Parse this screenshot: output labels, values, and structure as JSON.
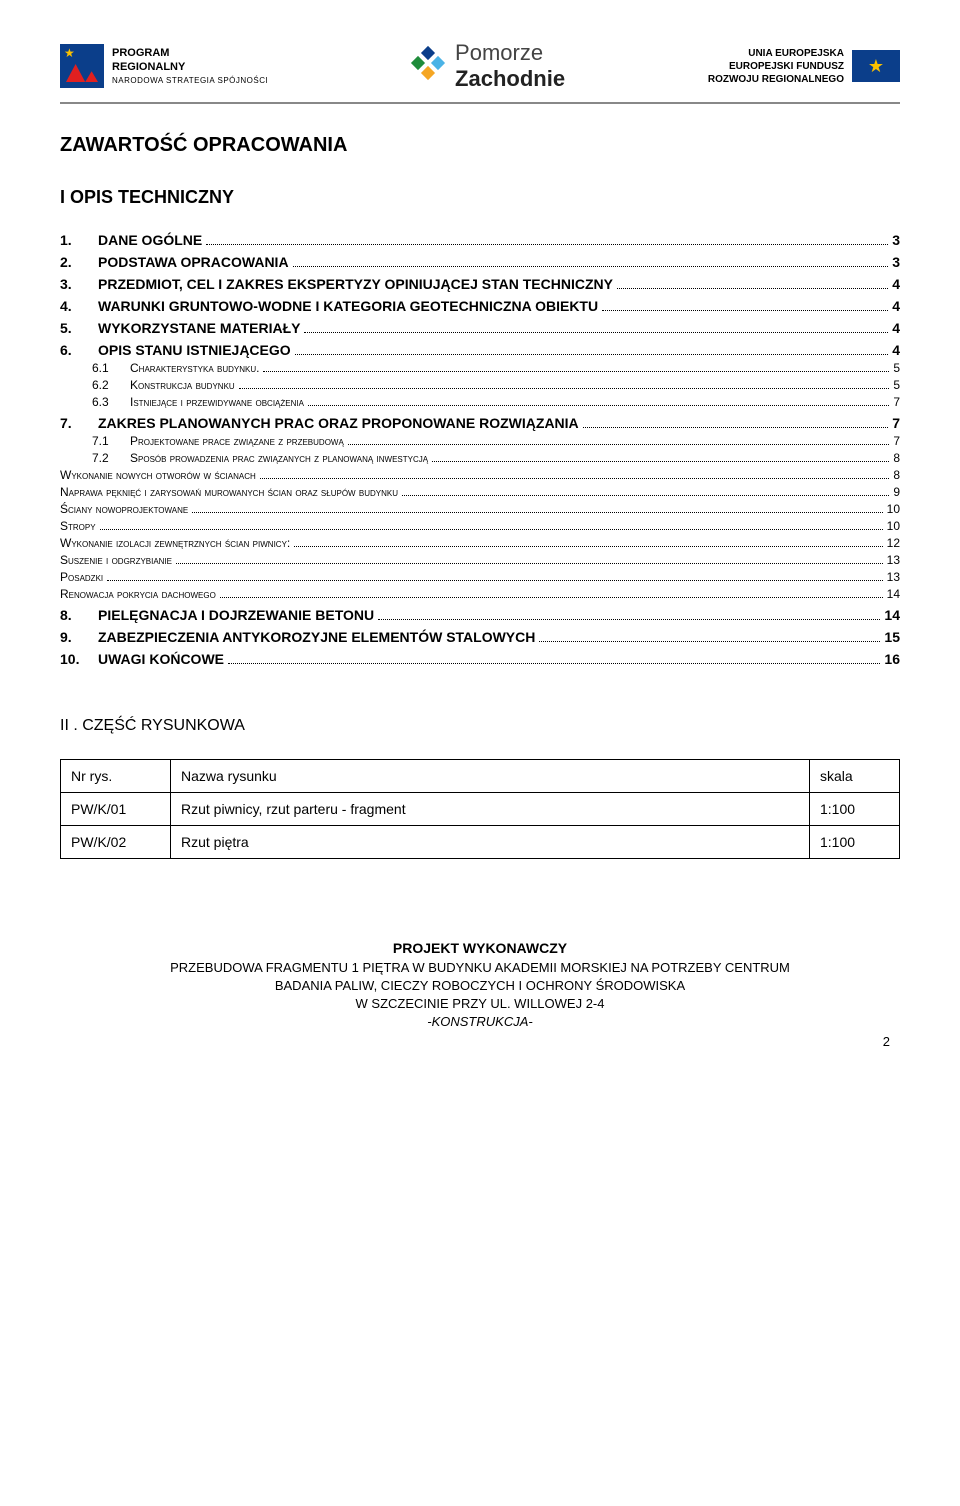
{
  "header": {
    "left": {
      "line1": "PROGRAM",
      "line2": "REGIONALNY",
      "sub": "NARODOWA STRATEGIA SPÓJNOŚCI"
    },
    "mid": {
      "thin": "Pomorze",
      "bold": "Zachodnie"
    },
    "right": {
      "l1": "UNIA EUROPEJSKA",
      "l2": "EUROPEJSKI FUNDUSZ",
      "l3": "ROZWOJU REGIONALNEGO",
      "stars": "★"
    }
  },
  "title": "ZAWARTOŚĆ OPRACOWANIA",
  "section1": "I  OPIS TECHNICZNY",
  "toc": [
    {
      "lvl": 1,
      "num": "1.",
      "label": "DANE OGÓLNE",
      "page": "3"
    },
    {
      "lvl": 1,
      "num": "2.",
      "label": "PODSTAWA OPRACOWANIA",
      "page": "3"
    },
    {
      "lvl": 1,
      "num": "3.",
      "label": "PRZEDMIOT, CEL I ZAKRES EKSPERTYZY OPINIUJĄCEJ STAN TECHNICZNY",
      "page": "4"
    },
    {
      "lvl": 1,
      "num": "4.",
      "label": "WARUNKI GRUNTOWO-WODNE I KATEGORIA GEOTECHNICZNA OBIEKTU",
      "page": "4"
    },
    {
      "lvl": 1,
      "num": "5.",
      "label": "WYKORZYSTANE MATERIAŁY",
      "page": "4"
    },
    {
      "lvl": 1,
      "num": "6.",
      "label": "OPIS STANU ISTNIEJĄCEGO",
      "page": "4"
    },
    {
      "lvl": 2,
      "num": "6.1",
      "label": "Charakterystyka budynku.",
      "page": "5"
    },
    {
      "lvl": 2,
      "num": "6.2",
      "label": "Konstrukcja budynku",
      "page": "5"
    },
    {
      "lvl": 2,
      "num": "6.3",
      "label": "Istniejące i przewidywane obciążenia",
      "page": "7"
    },
    {
      "lvl": 1,
      "num": "7.",
      "label": "ZAKRES PLANOWANYCH PRAC ORAZ PROPONOWANE ROZWIĄZANIA",
      "page": "7"
    },
    {
      "lvl": 2,
      "num": "7.1",
      "label": "Projektowane prace związane z przebudową",
      "page": "7"
    },
    {
      "lvl": 2,
      "num": "7.2",
      "label": "Sposób prowadzenia prac związanych z planowaną inwestycją",
      "page": "8"
    },
    {
      "lvl": 3,
      "num": "",
      "label": "Wykonanie nowych otworów w ścianach",
      "page": "8"
    },
    {
      "lvl": 3,
      "num": "",
      "label": "Naprawa pęknięć i zarysowań murowanych ścian oraz słupów budynku",
      "page": "9"
    },
    {
      "lvl": 3,
      "num": "",
      "label": "Ściany nowoprojektowane",
      "page": "10"
    },
    {
      "lvl": 3,
      "num": "",
      "label": "Stropy",
      "page": "10"
    },
    {
      "lvl": 3,
      "num": "",
      "label": "Wykonanie izolacji zewnętrznych ścian piwnicy:",
      "page": "12"
    },
    {
      "lvl": 3,
      "num": "",
      "label": "Suszenie i odgrzybianie",
      "page": "13"
    },
    {
      "lvl": 3,
      "num": "",
      "label": "Posadzki",
      "page": "13"
    },
    {
      "lvl": 3,
      "num": "",
      "label": "Renowacja pokrycia dachowego",
      "page": "14"
    },
    {
      "lvl": 1,
      "num": "8.",
      "label": "PIELĘGNACJA I DOJRZEWANIE BETONU",
      "page": "14"
    },
    {
      "lvl": 1,
      "num": "9.",
      "label": "ZABEZPIECZENIA  ANTYKOROZYJNE  ELEMENTÓW  STALOWYCH",
      "page": "15"
    },
    {
      "lvl": 1,
      "num": "10.",
      "label": "UWAGI  KOŃCOWE",
      "page": "16"
    }
  ],
  "section2": "II . CZĘŚĆ RYSUNKOWA",
  "table": {
    "headers": [
      "Nr rys.",
      "Nazwa rysunku",
      "skala"
    ],
    "rows": [
      [
        "PW/K/01",
        "Rzut piwnicy, rzut parteru - fragment",
        "1:100"
      ],
      [
        "PW/K/02",
        "Rzut piętra",
        "1:100"
      ]
    ]
  },
  "footer": {
    "title": "PROJEKT WYKONAWCZY",
    "l1": "PRZEBUDOWA FRAGMENTU 1 PIĘTRA W BUDYNKU AKADEMII MORSKIEJ NA POTRZEBY CENTRUM",
    "l2": "BADANIA PALIW, CIECZY ROBOCZYCH I OCHRONY ŚRODOWISKA",
    "l3": "W SZCZECINIE PRZY UL. WILLOWEJ 2-4",
    "k": "-KONSTRUKCJA-",
    "page": "2"
  },
  "style": {
    "page_bg": "#ffffff",
    "text_color": "#000000",
    "hr_color": "#888888",
    "font_family": "Arial",
    "title_fontsize": 20,
    "lvl1_fontsize": 14,
    "lvl2_fontsize": 12,
    "table_border": "#000000"
  }
}
